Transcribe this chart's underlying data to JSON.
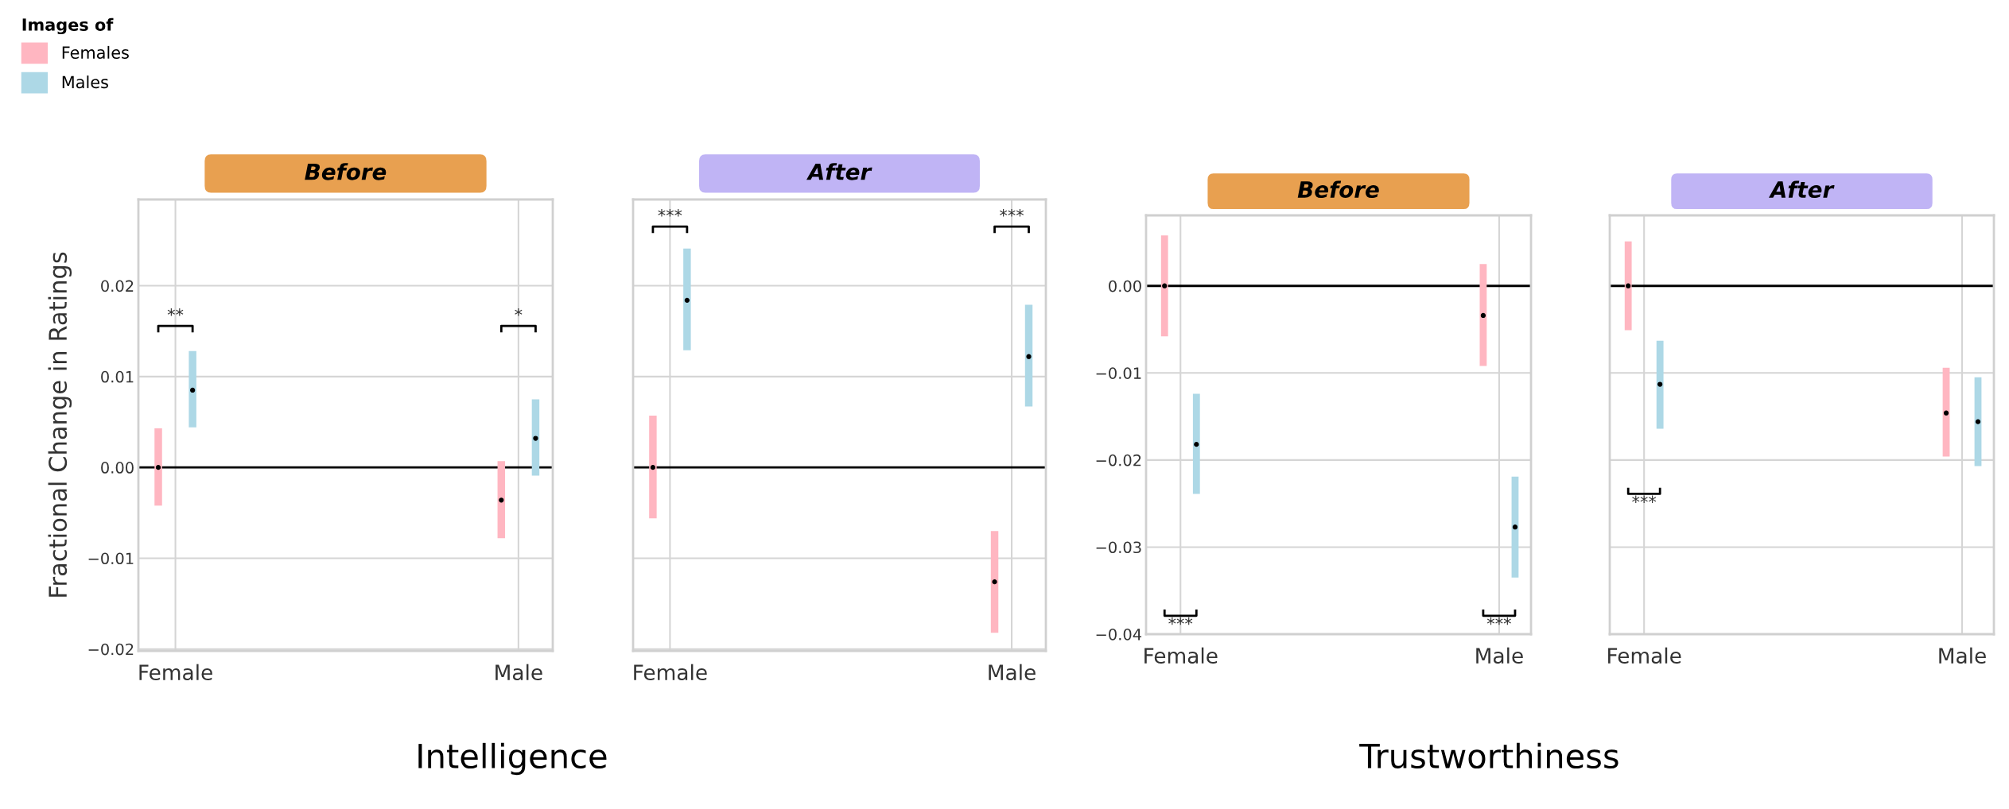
{
  "chart_data": [
    {
      "type": "bar",
      "title": "Before",
      "ylabel": "Fractional Change in Ratings",
      "legend_title": "Images of",
      "legend": "top left",
      "categories": [
        "Female",
        "Male"
      ],
      "ylim": [
        -0.0202,
        0.0295
      ],
      "yticks": [
        {
          "value": -0.02,
          "label": "−0.02"
        },
        {
          "value": -0.01,
          "label": "−0.01"
        },
        {
          "value": 0,
          "label": "0.00"
        },
        {
          "value": 0.01,
          "label": "0.01"
        },
        {
          "value": 0.02,
          "label": "0.02"
        }
      ],
      "grid": true,
      "marker": "circle",
      "series": [
        {
          "name": "Females",
          "color": "#ffb6c1",
          "base": [
            -0.0042,
            -0.0078
          ],
          "values": [
            0.0085,
            0.0085
          ]
        },
        {
          "name": "Males",
          "color": "#add8e6",
          "base": [
            0.0044,
            -0.0009
          ],
          "values": [
            0.0084,
            0.0084
          ]
        },
        {
          "type": "scatter",
          "color": "#000000",
          "x": [
            "Female",
            "Male"
          ],
          "values": [
            0.0,
            -0.0036
          ]
        },
        {
          "type": "scatter",
          "color": "#000000",
          "x": [
            "Female",
            "Male"
          ],
          "values": [
            0.0085,
            0.0032
          ]
        }
      ],
      "ref_lines": [
        {
          "axis": "y",
          "value": 0,
          "color": "#000000"
        }
      ],
      "annotations": [
        "**",
        "*",
        "Intelligence"
      ]
    },
    {
      "type": "bar",
      "title": "After",
      "categories": [
        "Female",
        "Male"
      ],
      "ylim": [
        -0.0202,
        0.0295
      ],
      "yticks": [
        {
          "value": -0.02,
          "label": "−0.02"
        },
        {
          "value": -0.01,
          "label": "−0.01"
        },
        {
          "value": 0,
          "label": "0.00"
        },
        {
          "value": 0.01,
          "label": "0.01"
        },
        {
          "value": 0.02,
          "label": "0.02"
        }
      ],
      "tick_labels": "x",
      "grid": true,
      "marker": "circle",
      "series": [
        {
          "color": "#ffb6c1",
          "base": [
            -0.0056,
            -0.0182
          ],
          "values": [
            0.0113,
            0.0112
          ]
        },
        {
          "color": "#add8e6",
          "base": [
            0.0129,
            0.0067
          ],
          "values": [
            0.0112,
            0.0112
          ]
        },
        {
          "type": "scatter",
          "color": "#000000",
          "x": [
            "Female",
            "Male"
          ],
          "values": [
            0.0,
            -0.0126
          ]
        },
        {
          "type": "scatter",
          "color": "#000000",
          "x": [
            "Female",
            "Male"
          ],
          "values": [
            0.0184,
            0.0122
          ]
        }
      ],
      "ref_lines": [
        {
          "axis": "y",
          "value": 0,
          "color": "#000000"
        }
      ],
      "annotations": [
        "***",
        "***"
      ]
    },
    {
      "type": "bar",
      "title": "Before",
      "categories": [
        "Female",
        "Male"
      ],
      "ylim": [
        -0.04,
        0.0081
      ],
      "yticks": [
        {
          "value": -0.04,
          "label": "−0.04"
        },
        {
          "value": -0.03,
          "label": "−0.03"
        },
        {
          "value": -0.02,
          "label": "−0.02"
        },
        {
          "value": -0.01,
          "label": "−0.01"
        },
        {
          "value": 0,
          "label": "0.00"
        }
      ],
      "grid": true,
      "marker": "circle",
      "series": [
        {
          "color": "#ffb6c1",
          "base": [
            -0.0058,
            -0.0092
          ],
          "values": [
            0.0116,
            0.0117
          ]
        },
        {
          "color": "#add8e6",
          "base": [
            -0.0239,
            -0.0335
          ],
          "values": [
            0.0115,
            0.0116
          ]
        },
        {
          "type": "scatter",
          "color": "#000000",
          "x": [
            "Female",
            "Male"
          ],
          "values": [
            0.0,
            -0.0034
          ]
        },
        {
          "type": "scatter",
          "color": "#000000",
          "x": [
            "Female",
            "Male"
          ],
          "values": [
            -0.0182,
            -0.0277
          ]
        }
      ],
      "ref_lines": [
        {
          "axis": "y",
          "value": 0,
          "color": "#000000"
        }
      ],
      "annotations": [
        "***",
        "***",
        "Trustworthiness"
      ]
    },
    {
      "type": "bar",
      "title": "After",
      "categories": [
        "Female",
        "Male"
      ],
      "ylim": [
        -0.04,
        0.0081
      ],
      "yticks": [
        {
          "value": -0.04,
          "label": "−0.04"
        },
        {
          "value": -0.03,
          "label": "−0.03"
        },
        {
          "value": -0.02,
          "label": "−0.02"
        },
        {
          "value": -0.01,
          "label": "−0.01"
        },
        {
          "value": 0,
          "label": "0.00"
        }
      ],
      "tick_labels": "x",
      "grid": true,
      "marker": "circle",
      "series": [
        {
          "color": "#ffb6c1",
          "base": [
            -0.0051,
            -0.0196
          ],
          "values": [
            0.0102,
            0.0102
          ]
        },
        {
          "color": "#add8e6",
          "base": [
            -0.0164,
            -0.0207
          ],
          "values": [
            0.0101,
            0.0102
          ]
        },
        {
          "type": "scatter",
          "color": "#000000",
          "x": [
            "Female",
            "Male"
          ],
          "values": [
            0.0,
            -0.0146
          ]
        },
        {
          "type": "scatter",
          "color": "#000000",
          "x": [
            "Female",
            "Male"
          ],
          "values": [
            -0.0113,
            -0.0156
          ]
        }
      ],
      "ref_lines": [
        {
          "axis": "y",
          "value": 0,
          "color": "#000000"
        }
      ],
      "annotations": [
        "***"
      ]
    }
  ]
}
